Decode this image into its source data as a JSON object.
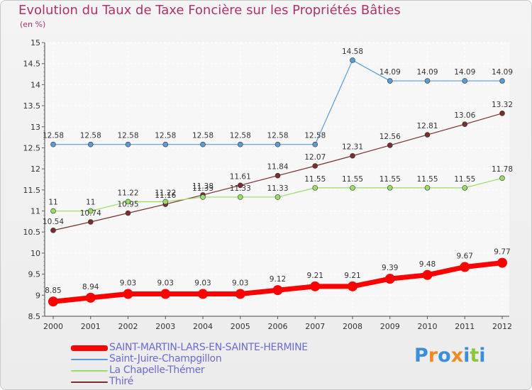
{
  "chart_data": {
    "type": "line",
    "title": "Evolution du Taux de Taxe Foncière sur les Propriétés Bâties",
    "unit_label": "(en %)",
    "x": [
      "2000",
      "2001",
      "2002",
      "2003",
      "2004",
      "2005",
      "2006",
      "2007",
      "2008",
      "2009",
      "2010",
      "2011",
      "2012"
    ],
    "ylim": [
      8.5,
      15
    ],
    "yticks": [
      8.5,
      9,
      9.5,
      10,
      10.5,
      11,
      11.5,
      12,
      12.5,
      13,
      13.5,
      14,
      14.5,
      15
    ],
    "ytick_labels": [
      "8.5",
      "9",
      "9.5",
      "10",
      "10.5",
      "11",
      "11.5",
      "12",
      "12.5",
      "13",
      "13.5",
      "14",
      "14.5",
      "15"
    ],
    "grid": true,
    "series": [
      {
        "name": "SAINT-MARTIN-LARS-EN-SAINTE-HERMINE",
        "color": "#ff0000",
        "values": [
          8.85,
          8.94,
          9.03,
          9.03,
          9.03,
          9.03,
          9.12,
          9.21,
          9.21,
          9.39,
          9.48,
          9.67,
          9.77
        ],
        "labels": [
          "8.85",
          "8.94",
          "9.03",
          "9.03",
          "9.03",
          "9.03",
          "9.12",
          "9.21",
          "9.21",
          "9.39",
          "9.48",
          "9.67",
          "9.77"
        ]
      },
      {
        "name": "Saint-Juire-Champgillon",
        "color": "#5a9ad5",
        "values": [
          12.58,
          12.58,
          12.58,
          12.58,
          12.58,
          12.58,
          12.58,
          12.58,
          14.58,
          14.09,
          14.09,
          14.09,
          14.09
        ],
        "labels": [
          "12.58",
          "12.58",
          "12.58",
          "12.58",
          "12.58",
          "12.58",
          "12.58",
          "12.58",
          "14.58",
          "14.09",
          "14.09",
          "14.09",
          "14.09"
        ]
      },
      {
        "name": "La Chapelle-Thémer",
        "color": "#99dd66",
        "values": [
          11,
          11,
          11.22,
          11.22,
          11.33,
          11.33,
          11.33,
          11.55,
          11.55,
          11.55,
          11.55,
          11.55,
          11.78
        ],
        "labels": [
          "11",
          "11",
          "11.22",
          "11.22",
          "11.33",
          "11.33",
          "11.33",
          "11.55",
          "11.55",
          "11.55",
          "11.55",
          "11.55",
          "11.78"
        ]
      },
      {
        "name": "Thiré",
        "color": "#7a2e2e",
        "values": [
          10.54,
          10.74,
          10.95,
          11.16,
          11.38,
          11.61,
          11.84,
          12.07,
          12.31,
          12.56,
          12.81,
          13.06,
          13.32
        ],
        "labels": [
          "10.54",
          "10.74",
          "10.95",
          "11.16",
          "11.38",
          "11.61",
          "11.84",
          "12.07",
          "12.31",
          "12.56",
          "12.81",
          "13.06",
          "13.32"
        ]
      }
    ]
  },
  "legend": [
    {
      "label": "SAINT-MARTIN-LARS-EN-SAINTE-HERMINE",
      "color": "#ff0000"
    },
    {
      "label": "Saint-Juire-Champgillon",
      "color": "#5a9ad5"
    },
    {
      "label": "La Chapelle-Thémer",
      "color": "#99dd66"
    },
    {
      "label": "Thiré",
      "color": "#7a2e2e"
    }
  ],
  "logo": {
    "letters": [
      "P",
      "r",
      "o",
      "x",
      "i",
      "t",
      "i"
    ],
    "colors": [
      "#3a8fd8",
      "#f08a24",
      "#3a8fd8",
      "#f08a24",
      "#3a8fd8",
      "#8cc63f",
      "#3a8fd8"
    ]
  }
}
